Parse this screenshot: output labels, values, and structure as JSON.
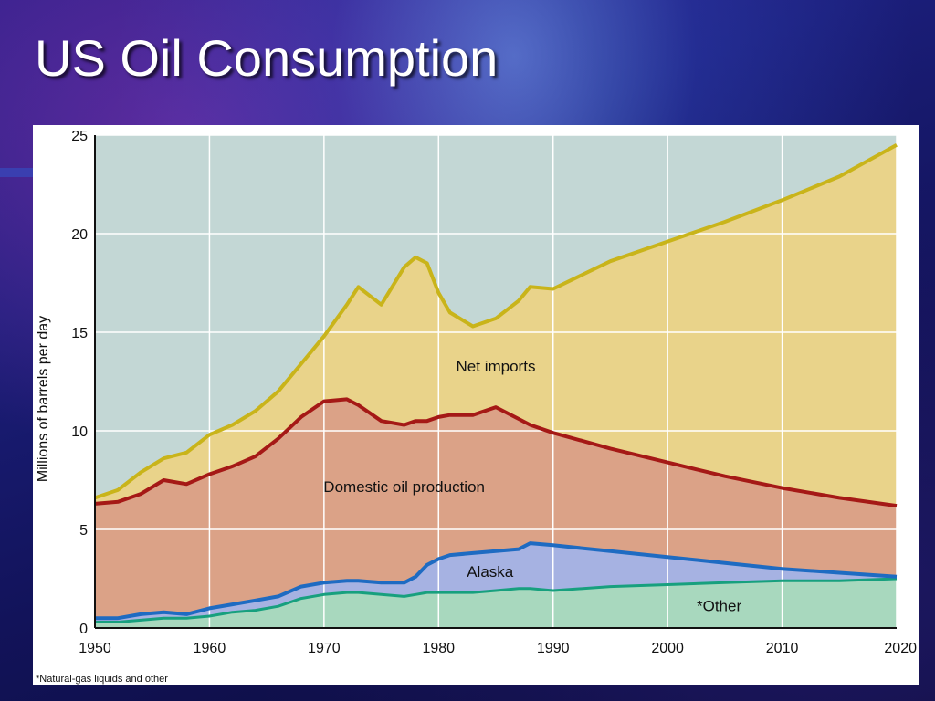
{
  "slide": {
    "title": "US Oil Consumption"
  },
  "chart_data": {
    "type": "area",
    "ylabel": "Millions of barrels per day",
    "xlim": [
      1950,
      2020
    ],
    "ylim": [
      0,
      25
    ],
    "x_ticks": [
      1950,
      1960,
      1970,
      1980,
      1990,
      2000,
      2010,
      2020
    ],
    "y_ticks": [
      0,
      5,
      10,
      15,
      20,
      25
    ],
    "grid": true,
    "footnote": "*Natural-gas liquids and other",
    "colors": {
      "plot_background": "#c3d7d5",
      "net_imports_fill": "#e9d38a",
      "domestic_fill": "#dba287",
      "alaska_fill": "#a6b2e2",
      "other_fill": "#a8d8be",
      "consumption_line": "#c9b41a",
      "domestic_line": "#a51916",
      "alaska_line": "#1e6bc2",
      "other_line": "#17a07e"
    },
    "x": [
      1950,
      1952,
      1954,
      1956,
      1958,
      1960,
      1962,
      1964,
      1966,
      1968,
      1970,
      1972,
      1973,
      1975,
      1977,
      1978,
      1979,
      1980,
      1981,
      1983,
      1985,
      1987,
      1988,
      1990,
      1995,
      2000,
      2005,
      2010,
      2015,
      2020
    ],
    "series": [
      {
        "name": "Net imports",
        "label_at": [
          1985,
          13.0
        ],
        "values": [
          6.6,
          7.0,
          7.9,
          8.6,
          8.9,
          9.8,
          10.3,
          11.0,
          12.0,
          13.4,
          14.8,
          16.4,
          17.3,
          16.4,
          18.3,
          18.8,
          18.5,
          17.0,
          16.0,
          15.3,
          15.7,
          16.6,
          17.3,
          17.2,
          18.6,
          19.6,
          20.6,
          21.7,
          22.9,
          24.5
        ]
      },
      {
        "name": "Domestic oil production",
        "label_at": [
          1977,
          6.9
        ],
        "values": [
          6.3,
          6.4,
          6.8,
          7.5,
          7.3,
          7.8,
          8.2,
          8.7,
          9.6,
          10.7,
          11.5,
          11.6,
          11.3,
          10.5,
          10.3,
          10.5,
          10.5,
          10.7,
          10.8,
          10.8,
          11.2,
          10.6,
          10.3,
          9.9,
          9.1,
          8.4,
          7.7,
          7.1,
          6.6,
          6.2
        ]
      },
      {
        "name": "Alaska",
        "label_at": [
          1984.5,
          2.6
        ],
        "values": [
          0.5,
          0.5,
          0.7,
          0.8,
          0.7,
          1.0,
          1.2,
          1.4,
          1.6,
          2.1,
          2.3,
          2.4,
          2.4,
          2.3,
          2.3,
          2.6,
          3.2,
          3.5,
          3.7,
          3.8,
          3.9,
          4.0,
          4.3,
          4.2,
          3.9,
          3.6,
          3.3,
          3.0,
          2.8,
          2.6
        ]
      },
      {
        "name": "*Other",
        "label_at": [
          2004.5,
          0.85
        ],
        "values": [
          0.3,
          0.3,
          0.4,
          0.5,
          0.5,
          0.6,
          0.8,
          0.9,
          1.1,
          1.5,
          1.7,
          1.8,
          1.8,
          1.7,
          1.6,
          1.7,
          1.8,
          1.8,
          1.8,
          1.8,
          1.9,
          2.0,
          2.0,
          1.9,
          2.1,
          2.2,
          2.3,
          2.4,
          2.4,
          2.5
        ]
      }
    ]
  }
}
